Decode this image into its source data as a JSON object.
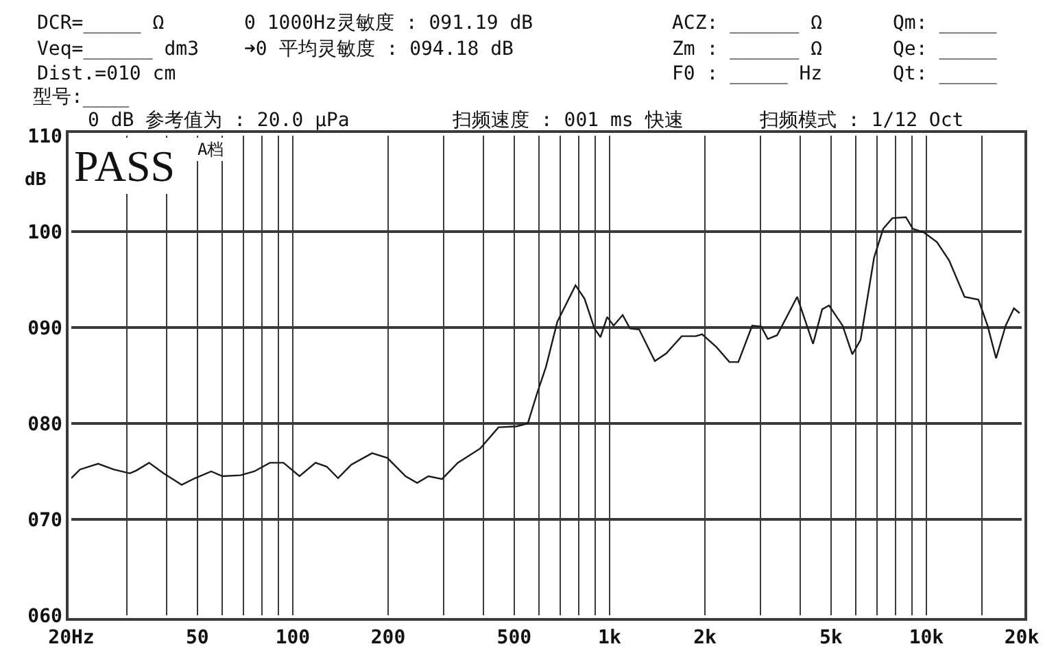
{
  "chart_data": {
    "type": "line",
    "ylabel": "dB",
    "annotations": [
      "DCR=_____ Ω",
      "0 1000Hz灵敏度 : 091.19 dB",
      "ACZ: ______ Ω",
      "Qm: _____",
      "Veq=______ dm3",
      "➜0 平均灵敏度 : 094.18 dB",
      "Zm : ______ Ω",
      "Qe: _____",
      "Dist.=010 cm",
      "F0 : _____ Hz",
      "Qt: _____",
      "型号:____",
      "0 dB 参考值为 : 20.0 μPa",
      "扫频速度 : 001 ms 快速",
      "扫频模式 : 1/12 Oct",
      "PASS",
      "A档"
    ],
    "x": [
      20,
      21.3,
      24.3,
      27.2,
      30.6,
      32.1,
      35.2,
      39.1,
      44.6,
      49.2,
      55.3,
      60,
      68.4,
      75.6,
      84.7,
      93.5,
      105,
      118,
      128,
      139,
      153,
      178,
      199,
      227,
      247,
      268,
      296,
      332,
      391,
      446,
      509,
      552,
      590,
      630,
      684,
      781,
      834,
      896,
      936,
      983,
      1030,
      1100,
      1160,
      1240,
      1390,
      1510,
      1690,
      1870,
      1960,
      2170,
      2390,
      2550,
      2820,
      3010,
      3160,
      3380,
      3910,
      4390,
      4690,
      4930,
      5440,
      5840,
      6200,
      6840,
      7310,
      7810,
      8620,
      9060,
      9830,
      10800,
      11800,
      13200,
      14600,
      15600,
      16600,
      17800,
      18900,
      19700
    ],
    "series": [
      {
        "color": "#1a1a1a",
        "values": [
          74.3,
          75.2,
          75.8,
          75.2,
          74.8,
          75.1,
          75.9,
          74.8,
          73.6,
          74.3,
          75.0,
          74.5,
          74.6,
          75.0,
          75.9,
          75.9,
          74.5,
          75.9,
          75.5,
          74.3,
          75.7,
          76.9,
          76.4,
          74.5,
          73.8,
          74.5,
          74.2,
          75.9,
          77.4,
          79.6,
          79.7,
          80.0,
          83.1,
          85.9,
          90.6,
          94.4,
          93.0,
          89.9,
          89.0,
          91.1,
          90.2,
          91.3,
          89.9,
          89.8,
          86.5,
          87.3,
          89.1,
          89.1,
          89.3,
          88.0,
          86.4,
          86.4,
          90.2,
          90.1,
          88.8,
          89.2,
          93.2,
          88.3,
          91.9,
          92.3,
          90.2,
          87.2,
          88.7,
          97.3,
          100.3,
          101.4,
          101.5,
          100.3,
          99.9,
          98.9,
          97.0,
          93.2,
          92.9,
          90.2,
          86.8,
          90.2,
          92.0,
          91.5
        ]
      }
    ],
    "log": "x",
    "xlim": [
      20,
      20000
    ],
    "xticks": [
      {
        "value": 20,
        "label": "20Hz"
      },
      {
        "value": 30,
        "label": null
      },
      {
        "value": 40,
        "label": null
      },
      50,
      {
        "value": 60,
        "label": null
      },
      {
        "value": 70,
        "label": null
      },
      {
        "value": 80,
        "label": null
      },
      {
        "value": 90,
        "label": null
      },
      100,
      200,
      {
        "value": 300,
        "label": null
      },
      {
        "value": 400,
        "label": null
      },
      500,
      {
        "value": 600,
        "label": null
      },
      {
        "value": 700,
        "label": null
      },
      {
        "value": 800,
        "label": null
      },
      {
        "value": 900,
        "label": null
      },
      {
        "value": 1000,
        "label": "1k"
      },
      {
        "value": 2000,
        "label": "2k"
      },
      {
        "value": 3000,
        "label": null
      },
      {
        "value": 4000,
        "label": null
      },
      {
        "value": 5000,
        "label": "5k"
      },
      {
        "value": 6000,
        "label": null
      },
      {
        "value": 7000,
        "label": null
      },
      {
        "value": 8000,
        "label": null
      },
      {
        "value": 9000,
        "label": null
      },
      {
        "value": 10000,
        "label": "10k"
      },
      {
        "value": 15000,
        "label": null
      },
      {
        "value": 20000,
        "label": "20k"
      }
    ],
    "ylim": [
      60,
      110
    ],
    "yticks": [
      {
        "value": 60,
        "label": "060"
      },
      {
        "value": 70,
        "label": "070"
      },
      {
        "value": 80,
        "label": "080"
      },
      {
        "value": 90,
        "label": "090"
      },
      100,
      110
    ],
    "grid": true,
    "line_style": "solid"
  }
}
